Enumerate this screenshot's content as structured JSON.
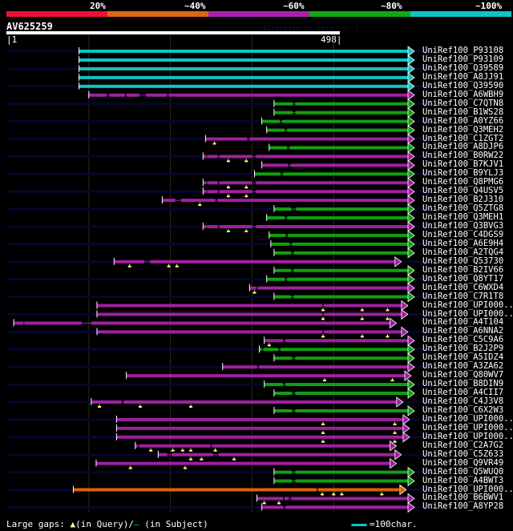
{
  "identity_legend": [
    {
      "label": "20%",
      "color": "#ee1133"
    },
    {
      "label": "~40%",
      "color": "#dd6611"
    },
    {
      "label": "~60%",
      "color": "#aa22aa"
    },
    {
      "label": "~80%",
      "color": "#11aa11"
    },
    {
      "label": "~100%",
      "color": "#11c4c4"
    }
  ],
  "query": {
    "name": "AV625259",
    "start": "1",
    "end": "498",
    "length": 498
  },
  "watermark": "AlignView.pm Beta rel.7",
  "colors": {
    "cyan": "#11c4c4",
    "purple": "#a020a0",
    "green": "#11a011",
    "orange": "#e06010",
    "track": "#06062e",
    "grid": "#2a2a12",
    "marker": "#ffff88"
  },
  "hits": [
    {
      "name": "UniRef100_P93108",
      "start": 88,
      "end": 498,
      "color": "cyan",
      "gaps": [],
      "markers": []
    },
    {
      "name": "UniRef100_P93109",
      "start": 88,
      "end": 498,
      "color": "cyan",
      "gaps": [],
      "markers": []
    },
    {
      "name": "UniRef100_Q39589",
      "start": 88,
      "end": 498,
      "color": "cyan",
      "gaps": [],
      "markers": []
    },
    {
      "name": "UniRef100_A8JJ91",
      "start": 88,
      "end": 498,
      "color": "cyan",
      "gaps": [],
      "markers": []
    },
    {
      "name": "UniRef100_Q39590",
      "start": 88,
      "end": 498,
      "color": "cyan",
      "gaps": [],
      "markers": []
    },
    {
      "name": "UniRef100_A6WBH9",
      "start": 100,
      "end": 498,
      "color": "purple",
      "gaps": [
        [
          122,
          125
        ],
        [
          144,
          146
        ],
        [
          162,
          170
        ],
        [
          196,
          198
        ]
      ],
      "markers": []
    },
    {
      "name": "UniRef100_C7QTN8",
      "start": 327,
      "end": 498,
      "color": "green",
      "gaps": [
        [
          350,
          353
        ]
      ],
      "markers": []
    },
    {
      "name": "UniRef100_B1WS28",
      "start": 327,
      "end": 498,
      "color": "green",
      "gaps": [
        [
          350,
          353
        ]
      ],
      "markers": []
    },
    {
      "name": "UniRef100_A0YZ66",
      "start": 312,
      "end": 498,
      "color": "green",
      "gaps": [
        [
          334,
          337
        ]
      ],
      "markers": []
    },
    {
      "name": "UniRef100_Q3MEH2",
      "start": 318,
      "end": 498,
      "color": "green",
      "gaps": [
        [
          340,
          343
        ]
      ],
      "markers": []
    },
    {
      "name": "UniRef100_C1ZGT2",
      "start": 243,
      "end": 498,
      "color": "purple",
      "gaps": [
        [
          294,
          297
        ]
      ],
      "markers": [
        254
      ]
    },
    {
      "name": "UniRef100_A8DJP6",
      "start": 321,
      "end": 498,
      "color": "green",
      "gaps": [
        [
          343,
          346
        ]
      ],
      "markers": []
    },
    {
      "name": "UniRef100_B0RW22",
      "start": 240,
      "end": 498,
      "color": "purple",
      "gaps": [
        [
          244,
          245
        ],
        [
          258,
          260
        ],
        [
          300,
          305
        ]
      ],
      "markers": [
        271,
        293
      ]
    },
    {
      "name": "UniRef100_B7KJV1",
      "start": 312,
      "end": 498,
      "color": "purple",
      "gaps": [
        [
          344,
          347
        ]
      ],
      "markers": []
    },
    {
      "name": "UniRef100_B9YLJ3",
      "start": 303,
      "end": 498,
      "color": "green",
      "gaps": [
        [
          335,
          338
        ]
      ],
      "markers": []
    },
    {
      "name": "UniRef100_Q8PMG6",
      "start": 240,
      "end": 498,
      "color": "purple",
      "gaps": [
        [
          244,
          245
        ],
        [
          258,
          260
        ],
        [
          300,
          305
        ]
      ],
      "markers": [
        271,
        293
      ]
    },
    {
      "name": "UniRef100_Q4USV5",
      "start": 240,
      "end": 498,
      "color": "purple",
      "gaps": [
        [
          244,
          245
        ],
        [
          258,
          260
        ],
        [
          300,
          305
        ]
      ],
      "markers": [
        271,
        293
      ]
    },
    {
      "name": "UniRef100_B2J310",
      "start": 190,
      "end": 498,
      "color": "purple",
      "gaps": [
        [
          206,
          213
        ],
        [
          255,
          258
        ]
      ],
      "markers": [
        236
      ]
    },
    {
      "name": "UniRef100_Q5ZTG8",
      "start": 327,
      "end": 498,
      "color": "green",
      "gaps": [
        [
          348,
          354
        ]
      ],
      "markers": []
    },
    {
      "name": "UniRef100_Q3MEH1",
      "start": 318,
      "end": 498,
      "color": "green",
      "gaps": [
        [
          340,
          343
        ]
      ],
      "markers": []
    },
    {
      "name": "UniRef100_Q3BVG3",
      "start": 240,
      "end": 498,
      "color": "purple",
      "gaps": [
        [
          244,
          245
        ],
        [
          258,
          260
        ],
        [
          300,
          305
        ]
      ],
      "markers": [
        271,
        293
      ]
    },
    {
      "name": "UniRef100_C4DGS9",
      "start": 321,
      "end": 498,
      "color": "green",
      "gaps": [
        [
          341,
          344
        ]
      ],
      "markers": []
    },
    {
      "name": "UniRef100_A6E9H4",
      "start": 323,
      "end": 498,
      "color": "green",
      "gaps": [
        [
          346,
          349
        ]
      ],
      "markers": []
    },
    {
      "name": "UniRef100_A2TQG4",
      "start": 327,
      "end": 498,
      "color": "green",
      "gaps": [
        [
          348,
          351
        ]
      ],
      "markers": []
    },
    {
      "name": "UniRef100_Q53730",
      "start": 131,
      "end": 482,
      "color": "purple",
      "gaps": [
        [
          168,
          175
        ]
      ],
      "markers": [
        150,
        198,
        208
      ]
    },
    {
      "name": "UniRef100_B2IV66",
      "start": 327,
      "end": 498,
      "color": "green",
      "gaps": [
        [
          348,
          351
        ]
      ],
      "markers": []
    },
    {
      "name": "UniRef100_Q8YT17",
      "start": 318,
      "end": 498,
      "color": "green",
      "gaps": [
        [
          340,
          343
        ]
      ],
      "markers": []
    },
    {
      "name": "UniRef100_C6WXD4",
      "start": 297,
      "end": 498,
      "color": "purple",
      "gaps": [
        [
          305,
          307
        ]
      ],
      "markers": [
        303
      ]
    },
    {
      "name": "UniRef100_C7R1T8",
      "start": 327,
      "end": 498,
      "color": "green",
      "gaps": [
        [
          348,
          351
        ]
      ],
      "markers": []
    },
    {
      "name": "UniRef100_UPI000..",
      "start": 110,
      "end": 490,
      "color": "purple",
      "gaps": [
        [
          386,
          388
        ]
      ],
      "markers": [
        387,
        435,
        466
      ]
    },
    {
      "name": "UniRef100_UPI000..",
      "start": 110,
      "end": 490,
      "color": "purple",
      "gaps": [
        [
          386,
          388
        ]
      ],
      "markers": [
        387,
        435,
        466
      ]
    },
    {
      "name": "UniRef100_A4T104",
      "start": 8,
      "end": 476,
      "color": "purple",
      "gaps": [
        [
          20,
          21
        ],
        [
          91,
          103
        ]
      ],
      "markers": []
    },
    {
      "name": "UniRef100_A6NNA2",
      "start": 110,
      "end": 490,
      "color": "purple",
      "gaps": [
        [
          386,
          388
        ]
      ],
      "markers": [
        387,
        435,
        466
      ]
    },
    {
      "name": "UniRef100_C5C9A6",
      "start": 315,
      "end": 498,
      "color": "purple",
      "gaps": [
        [
          338,
          341
        ]
      ],
      "markers": [
        321
      ]
    },
    {
      "name": "UniRef100_B2J2P9",
      "start": 309,
      "end": 498,
      "color": "green",
      "gaps": [
        [
          312,
          314
        ],
        [
          332,
          335
        ]
      ],
      "markers": []
    },
    {
      "name": "UniRef100_A5IDZ4",
      "start": 327,
      "end": 498,
      "color": "green",
      "gaps": [
        [
          349,
          353
        ]
      ],
      "markers": []
    },
    {
      "name": "UniRef100_A3ZA62",
      "start": 264,
      "end": 498,
      "color": "purple",
      "gaps": [
        [
          306,
          309
        ]
      ],
      "markers": []
    },
    {
      "name": "UniRef100_Q80WV7",
      "start": 146,
      "end": 494,
      "color": "purple",
      "gaps": [],
      "markers": [
        389,
        472
      ]
    },
    {
      "name": "UniRef100_B8DIN9",
      "start": 315,
      "end": 498,
      "color": "green",
      "gaps": [
        [
          338,
          341
        ]
      ],
      "markers": []
    },
    {
      "name": "UniRef100_A4CII7",
      "start": 327,
      "end": 498,
      "color": "green",
      "gaps": [
        [
          349,
          353
        ]
      ],
      "markers": []
    },
    {
      "name": "UniRef100_C4J3V8",
      "start": 103,
      "end": 484,
      "color": "purple",
      "gaps": [
        [
          140,
          143
        ]
      ],
      "markers": [
        113,
        163,
        225
      ]
    },
    {
      "name": "UniRef100_C6X2W3",
      "start": 327,
      "end": 498,
      "color": "green",
      "gaps": [
        [
          349,
          353
        ]
      ],
      "markers": []
    },
    {
      "name": "UniRef100_UPI000..",
      "start": 134,
      "end": 492,
      "color": "purple",
      "gaps": [],
      "markers": [
        387,
        475
      ]
    },
    {
      "name": "UniRef100_UPI000..",
      "start": 134,
      "end": 492,
      "color": "purple",
      "gaps": [],
      "markers": [
        387,
        475
      ]
    },
    {
      "name": "UniRef100_UPI000..",
      "start": 134,
      "end": 492,
      "color": "purple",
      "gaps": [],
      "markers": [
        387,
        475
      ]
    },
    {
      "name": "UniRef100_C2A7G2",
      "start": 157,
      "end": 476,
      "color": "purple",
      "gaps": [
        [
          160,
          162
        ],
        [
          249,
          251
        ]
      ],
      "markers": [
        176,
        203,
        215,
        225,
        255
      ]
    },
    {
      "name": "UniRef100_C5Z633",
      "start": 185,
      "end": 482,
      "color": "purple",
      "gaps": [
        [
          196,
          202
        ],
        [
          252,
          259
        ]
      ],
      "markers": [
        225,
        238,
        278
      ]
    },
    {
      "name": "UniRef100_Q9VR49",
      "start": 109,
      "end": 476,
      "color": "purple",
      "gaps": [],
      "markers": [
        151,
        218
      ]
    },
    {
      "name": "UniRef100_Q5WUQ0",
      "start": 327,
      "end": 498,
      "color": "green",
      "gaps": [
        [
          349,
          353
        ]
      ],
      "markers": []
    },
    {
      "name": "UniRef100_A4BWT3",
      "start": 327,
      "end": 498,
      "color": "green",
      "gaps": [
        [
          349,
          353
        ]
      ],
      "markers": []
    },
    {
      "name": "UniRef100_UPI000..",
      "start": 81,
      "end": 488,
      "color": "orange",
      "gaps": [
        [
          379,
          381
        ],
        [
          480,
          482
        ]
      ],
      "markers": [
        386,
        400,
        410,
        459
      ]
    },
    {
      "name": "UniRef100_B6BWV1",
      "start": 306,
      "end": 498,
      "color": "purple",
      "gaps": [
        [
          338,
          340
        ],
        [
          345,
          348
        ]
      ],
      "markers": [
        315,
        333
      ]
    },
    {
      "name": "UniRef100_A8YP28",
      "start": 312,
      "end": 498,
      "color": "purple",
      "gaps": [
        [
          338,
          341
        ]
      ],
      "markers": []
    }
  ],
  "footer": {
    "gaps_label": "Large gaps:",
    "query_gap_label": "(in Query)/",
    "subject_gap_label": "(in Subject)",
    "scale_label": "=100char."
  }
}
